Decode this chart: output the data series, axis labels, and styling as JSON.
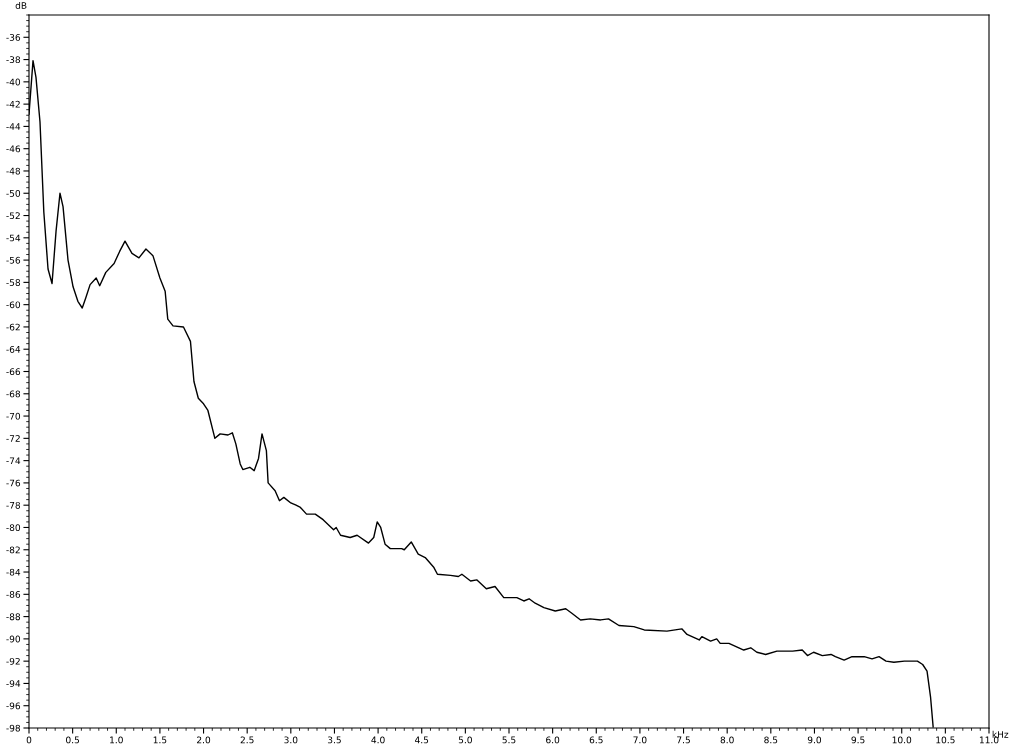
{
  "chart_data": {
    "type": "line",
    "xlabel": "kHz",
    "ylabel": "dB",
    "series": [
      {
        "color": "#000000",
        "x": [
          0,
          0.046,
          0.08,
          0.126,
          0.17,
          0.218,
          0.264,
          0.31,
          0.355,
          0.39,
          0.447,
          0.505,
          0.56,
          0.61,
          0.65,
          0.7,
          0.77,
          0.81,
          0.88,
          0.975,
          1.04,
          1.1,
          1.18,
          1.26,
          1.34,
          1.42,
          1.5,
          1.56,
          1.59,
          1.65,
          1.77,
          1.85,
          1.89,
          1.94,
          2.0,
          2.05,
          2.13,
          2.19,
          2.28,
          2.33,
          2.37,
          2.42,
          2.45,
          2.53,
          2.58,
          2.63,
          2.67,
          2.72,
          2.74,
          2.82,
          2.87,
          2.92,
          3.0,
          3.06,
          3.11,
          3.18,
          3.28,
          3.37,
          3.49,
          3.52,
          3.57,
          3.68,
          3.76,
          3.89,
          3.95,
          3.99,
          4.03,
          4.08,
          4.14,
          4.27,
          4.3,
          4.38,
          4.46,
          4.54,
          4.64,
          4.68,
          4.83,
          4.92,
          4.96,
          5.06,
          5.13,
          5.24,
          5.34,
          5.44,
          5.59,
          5.67,
          5.73,
          5.8,
          5.9,
          6.03,
          6.15,
          6.22,
          6.32,
          6.43,
          6.55,
          6.64,
          6.76,
          6.93,
          7.05,
          7.31,
          7.48,
          7.54,
          7.68,
          7.71,
          7.81,
          7.88,
          7.92,
          8.02,
          8.19,
          8.27,
          8.34,
          8.44,
          8.57,
          8.75,
          8.86,
          8.92,
          8.99,
          9.09,
          9.19,
          9.24,
          9.34,
          9.43,
          9.57,
          9.66,
          9.74,
          9.82,
          9.91,
          10.03,
          10.18,
          10.24,
          10.29,
          10.33,
          10.36
        ],
        "values": [
          -42.9,
          -38.1,
          -39.6,
          -43.6,
          -51.7,
          -56.8,
          -58.1,
          -53.4,
          -50.0,
          -51.2,
          -56.0,
          -58.4,
          -59.7,
          -60.3,
          -59.4,
          -58.2,
          -57.6,
          -58.3,
          -57.1,
          -56.3,
          -55.2,
          -54.3,
          -55.4,
          -55.8,
          -55.0,
          -55.6,
          -57.6,
          -58.8,
          -61.3,
          -61.9,
          -62.0,
          -63.3,
          -66.9,
          -68.4,
          -68.9,
          -69.5,
          -72.0,
          -71.6,
          -71.7,
          -71.5,
          -72.5,
          -74.3,
          -74.8,
          -74.6,
          -74.9,
          -73.8,
          -71.6,
          -73.1,
          -76.0,
          -76.7,
          -77.6,
          -77.3,
          -77.8,
          -78.0,
          -78.2,
          -78.8,
          -78.8,
          -79.3,
          -80.2,
          -80.0,
          -80.7,
          -80.9,
          -80.7,
          -81.4,
          -80.9,
          -79.5,
          -80.0,
          -81.5,
          -81.9,
          -81.9,
          -82.0,
          -81.3,
          -82.4,
          -82.7,
          -83.6,
          -84.2,
          -84.3,
          -84.4,
          -84.2,
          -84.8,
          -84.7,
          -85.5,
          -85.3,
          -86.3,
          -86.3,
          -86.6,
          -86.4,
          -86.8,
          -87.2,
          -87.5,
          -87.3,
          -87.7,
          -88.3,
          -88.2,
          -88.3,
          -88.2,
          -88.8,
          -88.9,
          -89.2,
          -89.3,
          -89.1,
          -89.6,
          -90.1,
          -89.8,
          -90.2,
          -90.0,
          -90.4,
          -90.4,
          -91.0,
          -90.8,
          -91.2,
          -91.4,
          -91.1,
          -91.1,
          -91.0,
          -91.5,
          -91.2,
          -91.5,
          -91.4,
          -91.6,
          -91.9,
          -91.6,
          -91.6,
          -91.8,
          -91.6,
          -92.0,
          -92.1,
          -92.0,
          -92.0,
          -92.3,
          -92.9,
          -95.2,
          -97.9
        ]
      }
    ],
    "xlim": [
      0,
      11.0
    ],
    "ylim": [
      -98,
      -34
    ],
    "xticks": [
      0,
      0.5,
      {
        "value": 1,
        "label": "1.0"
      },
      1.5,
      {
        "value": 2,
        "label": "2.0"
      },
      2.5,
      {
        "value": 3,
        "label": "3.0"
      },
      3.5,
      {
        "value": 4,
        "label": "4.0"
      },
      4.5,
      {
        "value": 5,
        "label": "5.0"
      },
      5.5,
      {
        "value": 6,
        "label": "6.0"
      },
      6.5,
      {
        "value": 7,
        "label": "7.0"
      },
      7.5,
      {
        "value": 8,
        "label": "8.0"
      },
      8.5,
      {
        "value": 9,
        "label": "9.0"
      },
      9.5,
      {
        "value": 10,
        "label": "10.0"
      },
      10.5,
      {
        "value": 11,
        "label": "11.0"
      }
    ],
    "yticks": [
      -36,
      -38,
      -40,
      -42,
      -44,
      -46,
      -48,
      -50,
      -52,
      -54,
      -56,
      -58,
      -60,
      -62,
      -64,
      -66,
      -68,
      -70,
      -72,
      -74,
      -76,
      -78,
      -80,
      -82,
      -84,
      -86,
      -88,
      -90,
      -92,
      -94,
      -96,
      -98
    ],
    "grid": false,
    "legend": false,
    "marker": "none",
    "line_style": "solid"
  }
}
